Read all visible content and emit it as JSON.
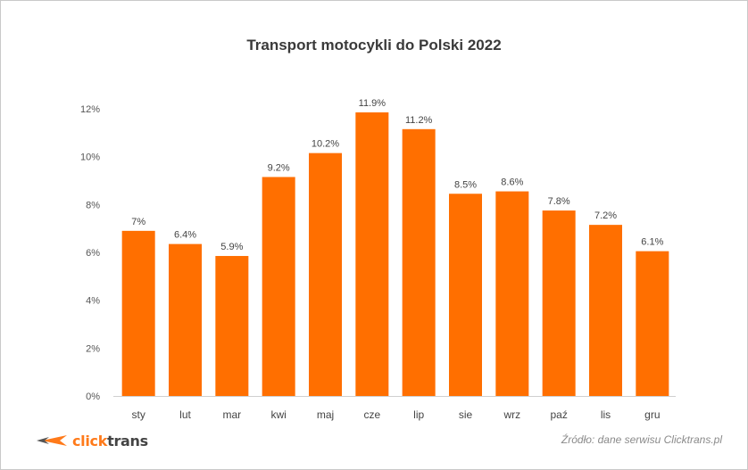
{
  "colors": {
    "bar": "#ff6f00",
    "logo_accent": "#ff7a1a",
    "logo_dark": "#444444"
  },
  "logo": {
    "part1": "click",
    "part2": "trans",
    "icon": "chevron-swoosh-icon"
  },
  "source": "Źródło: dane serwisu Clicktrans.pl",
  "chart_data": {
    "type": "bar",
    "title": "Transport motocykli do Polski 2022",
    "xlabel": "",
    "ylabel": "",
    "categories": [
      "sty",
      "lut",
      "mar",
      "kwi",
      "maj",
      "cze",
      "lip",
      "sie",
      "wrz",
      "paź",
      "lis",
      "gru"
    ],
    "values": [
      6.9,
      6.35,
      5.85,
      9.15,
      10.15,
      11.85,
      11.15,
      8.45,
      8.55,
      7.75,
      7.15,
      6.05
    ],
    "data_labels": [
      "7%",
      "6.4%",
      "5.9%",
      "9.2%",
      "10.2%",
      "11.9%",
      "11.2%",
      "8.5%",
      "8.6%",
      "7.8%",
      "7.2%",
      "6.1%"
    ],
    "ylim": [
      0,
      12
    ],
    "yticks": [
      0,
      2,
      4,
      6,
      8,
      10,
      12
    ],
    "ytick_labels": [
      "0%",
      "2%",
      "4%",
      "6%",
      "8%",
      "10%",
      "12%"
    ],
    "grid": false,
    "legend": "none"
  }
}
